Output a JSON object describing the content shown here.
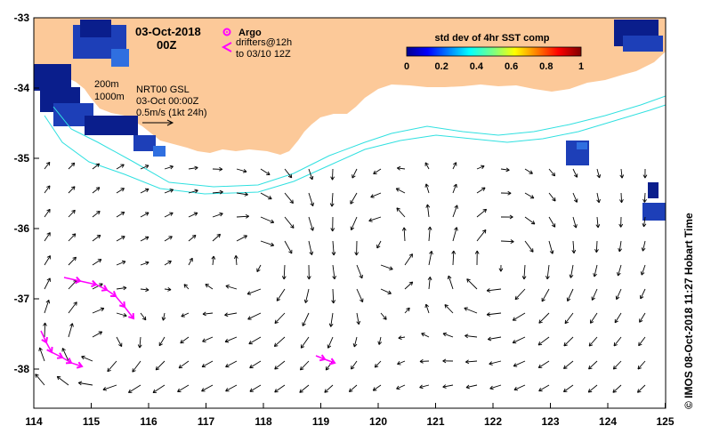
{
  "map": {
    "date": "03-Oct-2018",
    "time": "00Z",
    "legend": {
      "argo": "Argo",
      "drifters_line1": "drifters@12h",
      "drifters_line2": "to 03/10 12Z"
    },
    "isobaths": [
      "200m",
      "1000m"
    ],
    "product": {
      "line1": "NRT00 GSL",
      "line2": "03-Oct 00:00Z",
      "line3": "0.5m/s (1kt 24h)"
    },
    "colorbar": {
      "title": "std dev of 4hr SST comp",
      "ticks": [
        "0",
        "0.2",
        "0.4",
        "0.6",
        "0.8",
        "1"
      ]
    },
    "credit": "© IMOS 08-Oct-2018 11:27 Hobart Time",
    "x_ticks": [
      "114",
      "115",
      "116",
      "117",
      "118",
      "119",
      "120",
      "121",
      "122",
      "123",
      "124",
      "125"
    ],
    "y_ticks": [
      "-33",
      "-34",
      "-35",
      "-36",
      "-37",
      "-38"
    ],
    "colors": {
      "land": "#fcc999",
      "isobath": "#30e0e0",
      "drifter": "#ff00ff",
      "sst_dark": "#0a1e8c",
      "sst_mid": "#2f6fe0"
    },
    "icons": {
      "argo": "argo-float-icon",
      "drifter": "drifter-chevron-icon",
      "scale_arrow": "scale-arrow-icon"
    }
  }
}
